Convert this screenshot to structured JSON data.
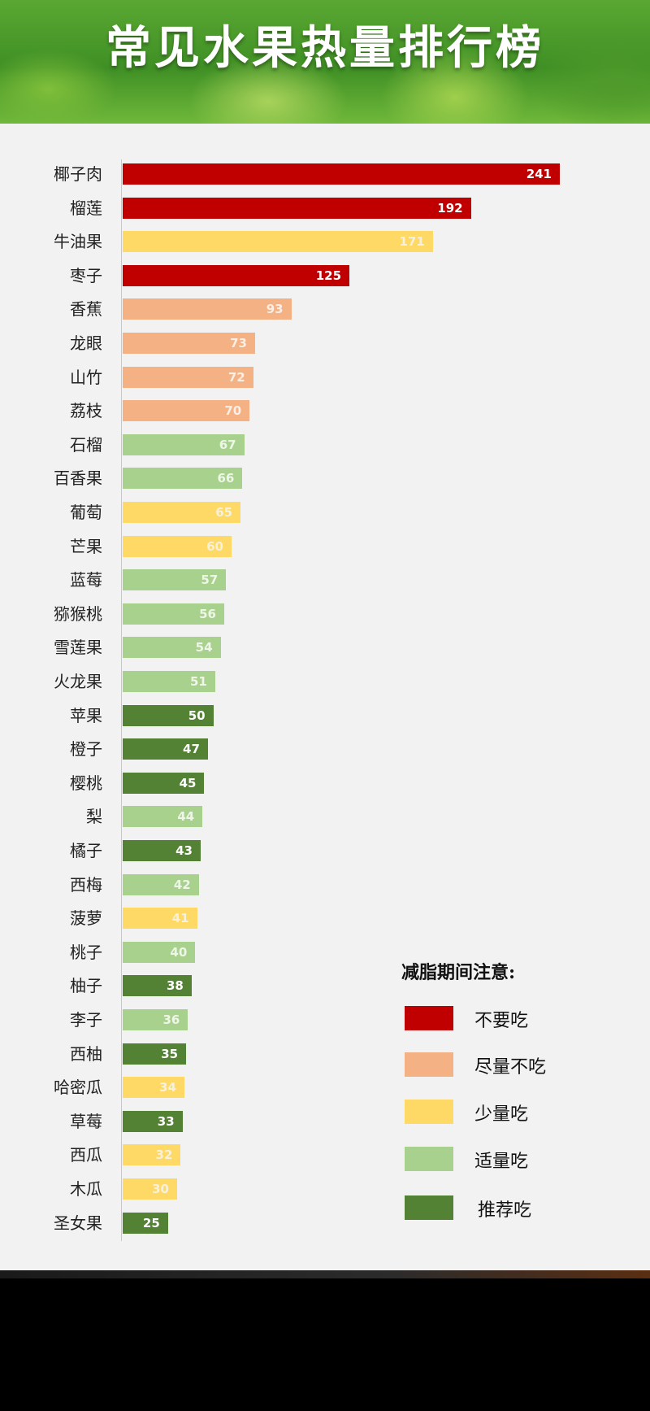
{
  "title": "常见水果热量排行榜",
  "colors": {
    "bu_yao_chi": "#c00000",
    "jin_liang_bu_chi": "#f4b183",
    "shao_liang_chi": "#ffd966",
    "shi_liang_chi": "#a9d18e",
    "tui_jian_chi": "#548235"
  },
  "legend": {
    "title": "减脂期间注意:",
    "items": [
      {
        "label": "不要吃",
        "color": "#c00000"
      },
      {
        "label": "尽量不吃",
        "color": "#f4b183"
      },
      {
        "label": "少量吃",
        "color": "#ffd966"
      },
      {
        "label": "适量吃",
        "color": "#a9d18e"
      },
      {
        "label": "推荐吃",
        "color": "#548235"
      }
    ]
  },
  "chart_data": {
    "type": "bar",
    "orientation": "horizontal",
    "title": "常见水果热量排行榜",
    "categories": [
      "椰子肉",
      "榴莲",
      "牛油果",
      "枣子",
      "香蕉",
      "龙眼",
      "山竹",
      "荔枝",
      "石榴",
      "百香果",
      "葡萄",
      "芒果",
      "蓝莓",
      "猕猴桃",
      "雪莲果",
      "火龙果",
      "苹果",
      "橙子",
      "樱桃",
      "梨",
      "橘子",
      "西梅",
      "菠萝",
      "桃子",
      "柚子",
      "李子",
      "西柚",
      "哈密瓜",
      "草莓",
      "西瓜",
      "木瓜",
      "圣女果"
    ],
    "values": [
      241,
      192,
      171,
      125,
      93,
      73,
      72,
      70,
      67,
      66,
      65,
      60,
      57,
      56,
      54,
      51,
      50,
      47,
      45,
      44,
      43,
      42,
      41,
      40,
      38,
      36,
      35,
      34,
      33,
      32,
      30,
      25
    ],
    "value_labels": [
      "241",
      "192",
      "171",
      "125",
      "93",
      "73",
      "72",
      "70",
      "67",
      "66",
      "65",
      "60",
      "57",
      "56",
      "54",
      "51",
      "50",
      "47",
      "45",
      "44",
      "43",
      "42",
      "41",
      "40",
      "38",
      "36",
      "35",
      "34",
      "33",
      "32",
      "30",
      "25"
    ],
    "groups": [
      "不要吃",
      "不要吃",
      "少量吃",
      "不要吃",
      "尽量不吃",
      "尽量不吃",
      "尽量不吃",
      "尽量不吃",
      "适量吃",
      "适量吃",
      "少量吃",
      "少量吃",
      "适量吃",
      "适量吃",
      "适量吃",
      "适量吃",
      "推荐吃",
      "推荐吃",
      "推荐吃",
      "适量吃",
      "推荐吃",
      "适量吃",
      "少量吃",
      "适量吃",
      "推荐吃",
      "适量吃",
      "推荐吃",
      "少量吃",
      "推荐吃",
      "少量吃",
      "少量吃",
      "推荐吃"
    ],
    "xlim": [
      0,
      241
    ],
    "grid": false,
    "legend_position": "bottom-right"
  }
}
